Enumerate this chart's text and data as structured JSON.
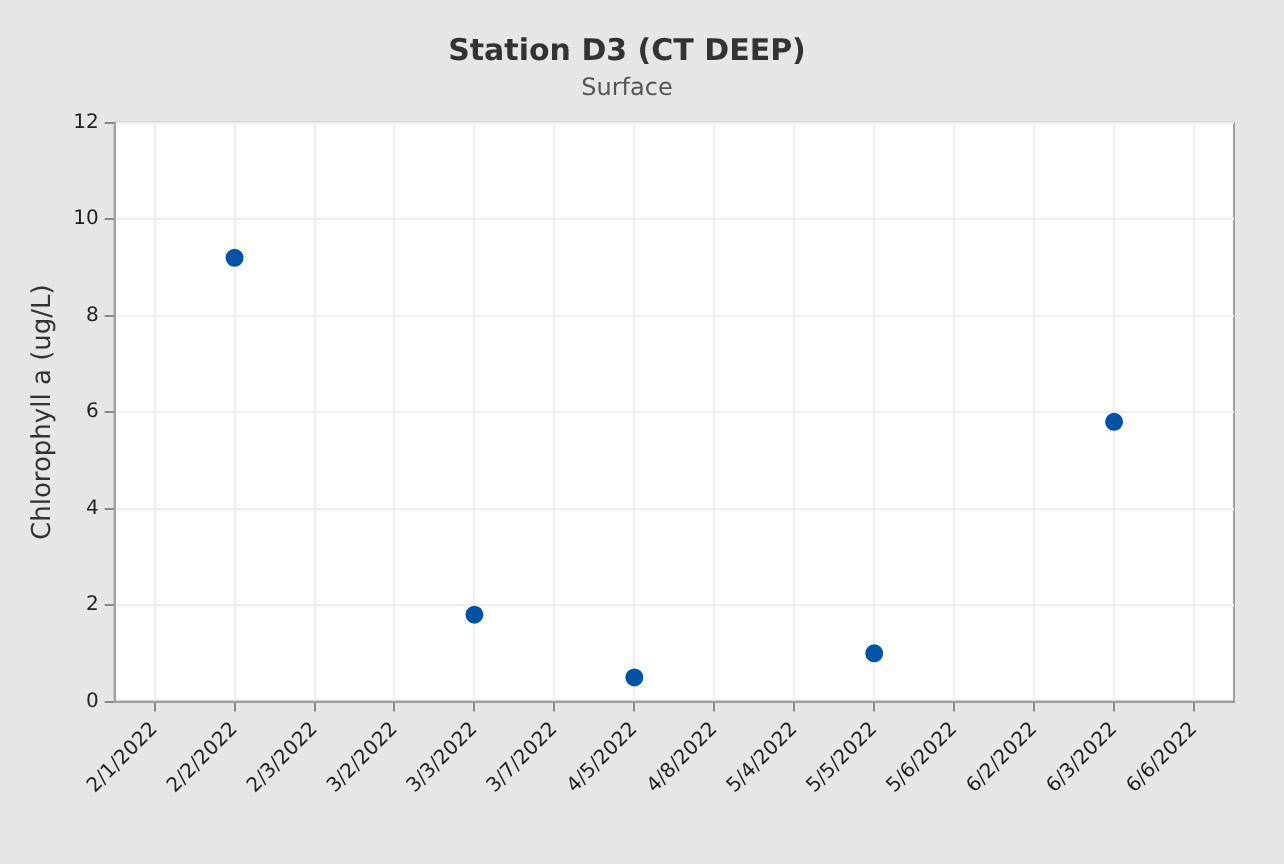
{
  "chart_data": {
    "type": "scatter",
    "title": "Station D3 (CT DEEP)",
    "subtitle": "Surface",
    "ylabel": "Chlorophyll a (ug/L)",
    "categories": [
      "2/1/2022",
      "2/2/2022",
      "2/3/2022",
      "3/2/2022",
      "3/3/2022",
      "3/7/2022",
      "4/5/2022",
      "4/8/2022",
      "5/4/2022",
      "5/5/2022",
      "5/6/2022",
      "6/2/2022",
      "6/3/2022",
      "6/6/2022"
    ],
    "values": [
      null,
      9.2,
      null,
      null,
      1.8,
      null,
      0.5,
      null,
      null,
      1.0,
      null,
      null,
      5.8,
      null
    ],
    "color": "#0054a6",
    "marker": "circle",
    "ylim": [
      0,
      12
    ],
    "yticks": [
      0,
      2,
      4,
      6,
      8,
      10,
      12
    ],
    "grid": true,
    "legend": false
  }
}
